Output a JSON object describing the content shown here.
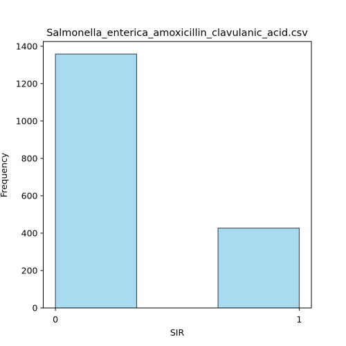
{
  "chart_data": {
    "type": "bar",
    "title": "Salmonella_enterica_amoxicillin_clavulanic_acid.csv",
    "xlabel": "SIR",
    "ylabel": "Frequency",
    "x_ticks": [
      0,
      1
    ],
    "y_ticks": [
      0,
      200,
      400,
      600,
      800,
      1000,
      1200,
      1400
    ],
    "xlim": [
      -0.05,
      1.05
    ],
    "ylim": [
      0,
      1425
    ],
    "bins": [
      {
        "x_start": 0.0,
        "x_end": 0.333,
        "value": 1358
      },
      {
        "x_start": 0.667,
        "x_end": 1.0,
        "value": 427
      }
    ],
    "bar_color": "#a8dbef",
    "edge_color": "#2f3b42",
    "grid": false,
    "legend": "none"
  }
}
